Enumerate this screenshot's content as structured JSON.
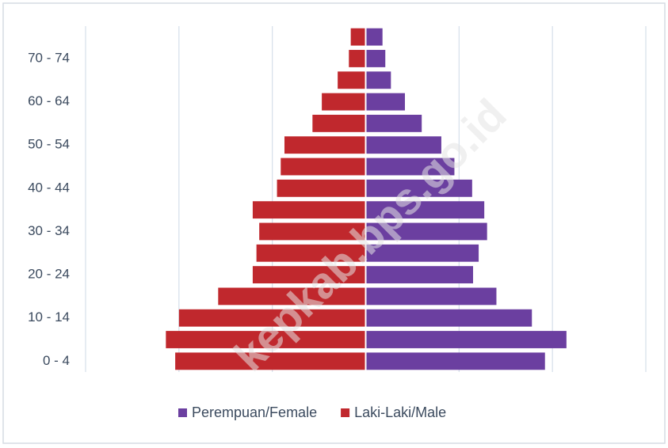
{
  "chart_data": {
    "type": "pyramid",
    "categories": [
      "0 - 4",
      null,
      "10 - 14",
      null,
      "20 - 24",
      null,
      "30 - 34",
      null,
      "40 - 44",
      null,
      "50 - 54",
      null,
      "60 - 64",
      null,
      "70 - 74",
      null
    ],
    "series": [
      {
        "name": "Perempuan/Female",
        "color": "#6b3fa0",
        "side": "right",
        "values": [
          19.2,
          21.5,
          17.8,
          14.0,
          11.5,
          12.1,
          13.0,
          12.7,
          11.4,
          9.5,
          8.1,
          6.0,
          4.2,
          2.7,
          2.1,
          1.8
        ]
      },
      {
        "name": "Laki-Laki/Male",
        "color": "#c0282d",
        "side": "left",
        "values": [
          20.4,
          21.4,
          20.0,
          15.8,
          12.1,
          11.7,
          11.4,
          12.1,
          9.5,
          9.1,
          8.7,
          5.7,
          4.7,
          3.0,
          1.8,
          1.6
        ]
      }
    ],
    "xlim": [
      -30,
      30
    ],
    "grid": true,
    "legend": "bottom",
    "watermark": "kepkab.bps.go.id"
  }
}
